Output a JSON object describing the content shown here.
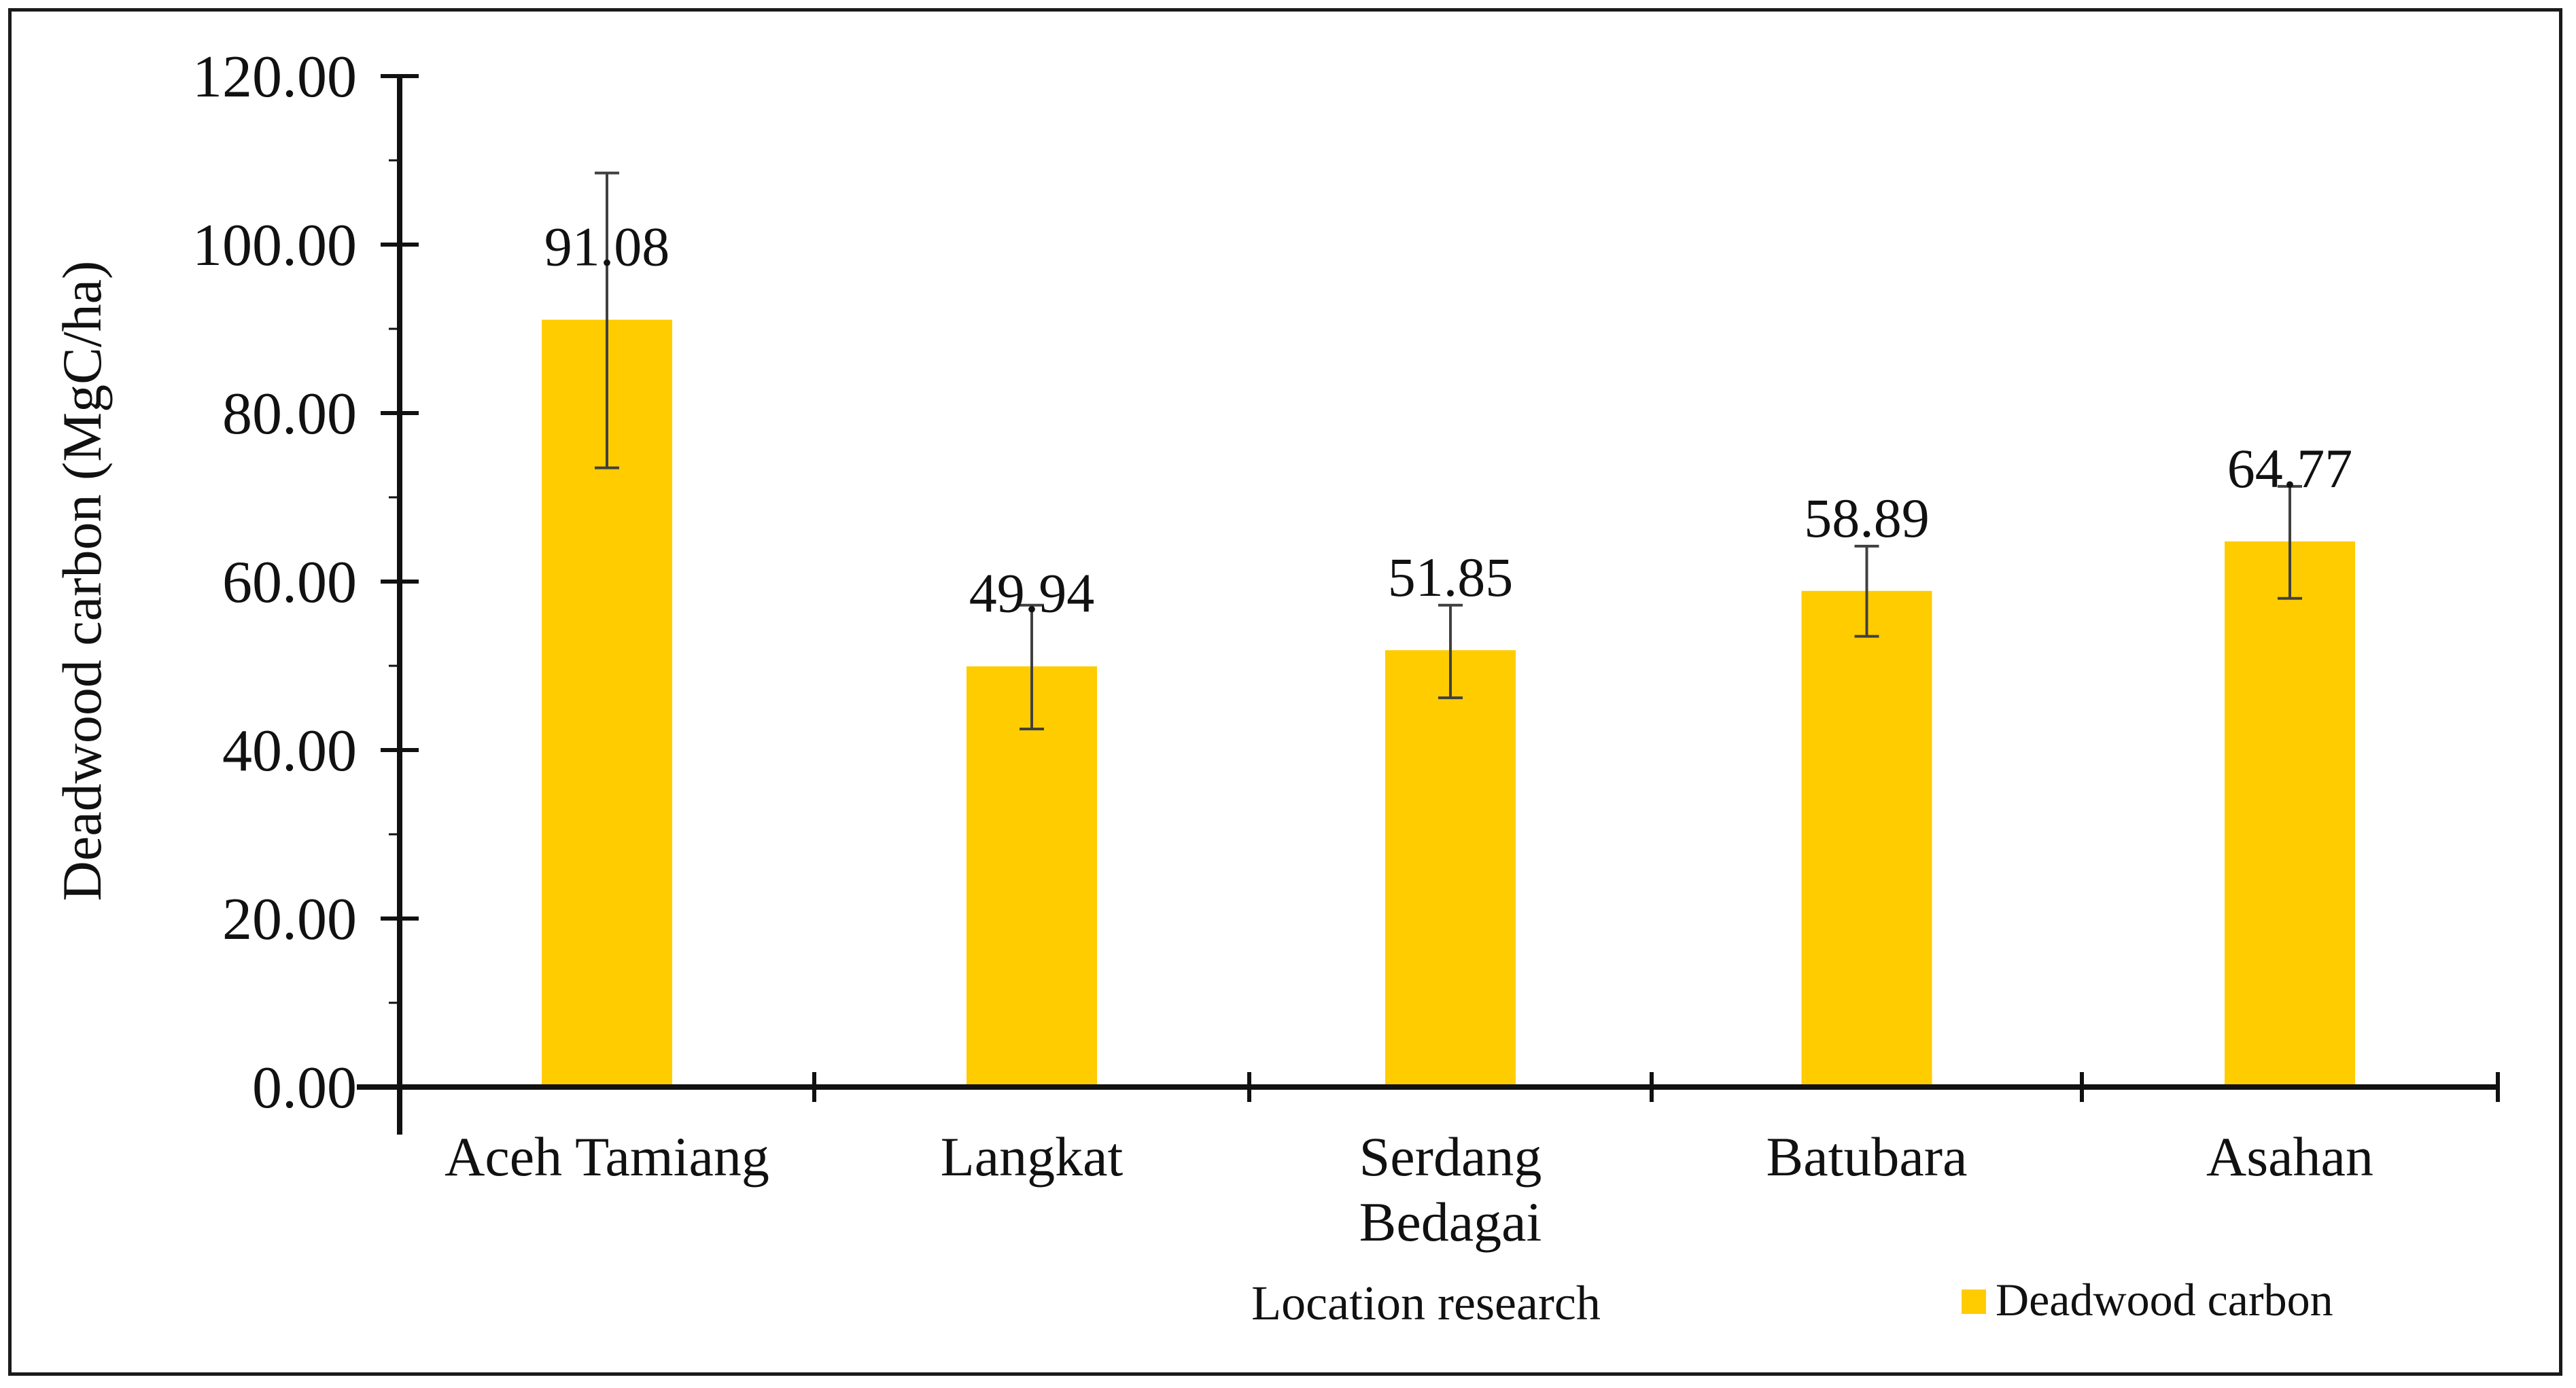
{
  "chart_data": {
    "type": "bar",
    "categories": [
      "Aceh Tamiang",
      "Langkat",
      "Serdang Bedagai",
      "Batubara",
      "Asahan"
    ],
    "category_lines": [
      [
        "Aceh Tamiang"
      ],
      [
        "Langkat"
      ],
      [
        "Serdang",
        "Bedagai"
      ],
      [
        "Batubara"
      ],
      [
        "Asahan"
      ]
    ],
    "series": [
      {
        "name": "Deadwood carbon",
        "values": [
          91.08,
          49.94,
          51.85,
          58.89,
          64.77
        ],
        "labels": [
          "91.08",
          "49.94",
          "51.85",
          "58.89",
          "64.77"
        ],
        "error_low": [
          73.5,
          42.5,
          46.2,
          53.5,
          58.0
        ],
        "error_high": [
          108.5,
          57.2,
          57.2,
          64.2,
          71.3
        ],
        "color": "#FFCC00"
      }
    ],
    "xlabel": "Location research",
    "ylabel": "Deadwood carbon (MgC/ha)",
    "ylim": [
      0,
      120
    ],
    "yticks": [
      0,
      20,
      40,
      60,
      80,
      100,
      120
    ],
    "ytick_labels": [
      "0.00",
      "20.00",
      "40.00",
      "60.00",
      "80.00",
      "100.00",
      "120.00"
    ],
    "grid": false,
    "legend_position": "bottom-right"
  }
}
